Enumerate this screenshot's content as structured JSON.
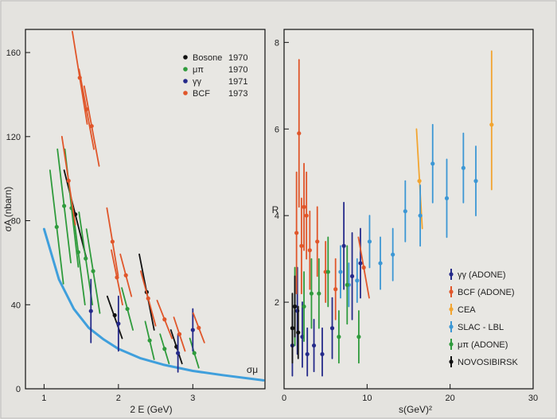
{
  "chart_data": [
    {
      "type": "scatter",
      "xlabel": "2 E (GeV)",
      "ylabel": "σA (nbarn)",
      "xlim": [
        0.75,
        3.97
      ],
      "ylim": [
        0,
        171
      ],
      "xticks": [
        "1",
        "2",
        "3"
      ],
      "xtick_values": [
        1,
        2,
        3
      ],
      "yticks": [
        "0",
        "40",
        "80",
        "120",
        "160"
      ],
      "ytick_values": [
        0,
        40,
        80,
        120,
        160
      ],
      "legend_position": "top-right",
      "curve": {
        "name": "σμ",
        "color": "#3f9fdc",
        "x": [
          1.0,
          1.2,
          1.4,
          1.6,
          1.8,
          2.0,
          2.3,
          2.6,
          3.0,
          3.4,
          3.95
        ],
        "y": [
          76,
          52,
          38,
          29,
          23.5,
          19,
          14.5,
          11.5,
          8.5,
          6.5,
          4
        ]
      },
      "series": [
        {
          "name": "Bosone",
          "year": "1970",
          "color": "#111111",
          "points": [
            {
              "x": 1.42,
              "y": 83,
              "lo": 62,
              "hi": 104,
              "dx": 0.3
            },
            {
              "x": 1.95,
              "y": 35,
              "lo": 24,
              "hi": 44,
              "dx": 0.2
            },
            {
              "x": 2.38,
              "y": 46,
              "lo": 28,
              "hi": 64,
              "dx": 0.2
            },
            {
              "x": 2.78,
              "y": 20,
              "lo": 12,
              "hi": 28,
              "dx": 0.15
            }
          ]
        },
        {
          "name": "μπ",
          "year": "1970",
          "color": "#2f9b3c",
          "points": [
            {
              "x": 1.17,
              "y": 77,
              "lo": 50,
              "hi": 104,
              "dx": 0.18
            },
            {
              "x": 1.27,
              "y": 87,
              "lo": 60,
              "hi": 114,
              "dx": 0.18
            },
            {
              "x": 1.37,
              "y": 86,
              "lo": 58,
              "hi": 114,
              "dx": 0.18
            },
            {
              "x": 1.46,
              "y": 65,
              "lo": 40,
              "hi": 90,
              "dx": 0.18
            },
            {
              "x": 1.56,
              "y": 62,
              "lo": 40,
              "hi": 84,
              "dx": 0.18
            },
            {
              "x": 1.66,
              "y": 56,
              "lo": 36,
              "hi": 76,
              "dx": 0.18
            },
            {
              "x": 2.12,
              "y": 38,
              "lo": 28,
              "hi": 48,
              "dx": 0.15
            },
            {
              "x": 2.42,
              "y": 23,
              "lo": 14,
              "hi": 32,
              "dx": 0.12
            },
            {
              "x": 2.62,
              "y": 19,
              "lo": 12,
              "hi": 26,
              "dx": 0.12
            },
            {
              "x": 3.02,
              "y": 17,
              "lo": 10,
              "hi": 24,
              "dx": 0.12
            }
          ]
        },
        {
          "name": "γγ",
          "year": "1971",
          "color": "#252a8a",
          "points": [
            {
              "x": 1.63,
              "y": 37,
              "lo": 22,
              "hi": 52,
              "dx": 0
            },
            {
              "x": 2.0,
              "y": 31,
              "lo": 18,
              "hi": 44,
              "dx": 0
            },
            {
              "x": 2.8,
              "y": 17,
              "lo": 8,
              "hi": 26,
              "dx": 0
            },
            {
              "x": 3.0,
              "y": 28,
              "lo": 18,
              "hi": 38,
              "dx": 0
            }
          ]
        },
        {
          "name": "BCF",
          "year": "1973",
          "color": "#e0562a",
          "points": [
            {
              "x": 1.33,
              "y": 99,
              "lo": 78,
              "hi": 120,
              "dx": 0.18
            },
            {
              "x": 1.48,
              "y": 148,
              "lo": 126,
              "hi": 170,
              "dx": 0.2
            },
            {
              "x": 1.57,
              "y": 133,
              "lo": 114,
              "hi": 152,
              "dx": 0.2
            },
            {
              "x": 1.64,
              "y": 125,
              "lo": 106,
              "hi": 144,
              "dx": 0.2
            },
            {
              "x": 1.92,
              "y": 70,
              "lo": 54,
              "hi": 86,
              "dx": 0.15
            },
            {
              "x": 1.98,
              "y": 53,
              "lo": 40,
              "hi": 66,
              "dx": 0.15
            },
            {
              "x": 2.1,
              "y": 54,
              "lo": 44,
              "hi": 64,
              "dx": 0.15
            },
            {
              "x": 2.4,
              "y": 43,
              "lo": 30,
              "hi": 56,
              "dx": 0.2
            },
            {
              "x": 2.62,
              "y": 33,
              "lo": 24,
              "hi": 42,
              "dx": 0.2
            },
            {
              "x": 2.82,
              "y": 26,
              "lo": 18,
              "hi": 34,
              "dx": 0.15
            },
            {
              "x": 3.08,
              "y": 29,
              "lo": 22,
              "hi": 36,
              "dx": 0.15
            }
          ]
        }
      ]
    },
    {
      "type": "scatter",
      "xlabel": "s(GeV)²",
      "ylabel": "R",
      "xlim": [
        0,
        30
      ],
      "ylim": [
        0,
        8.3
      ],
      "xticks": [
        "0",
        "10",
        "20",
        "30"
      ],
      "xtick_values": [
        0,
        10,
        20,
        30
      ],
      "yticks": [
        "2",
        "4",
        "6",
        "8"
      ],
      "ytick_values": [
        2,
        4,
        6,
        8
      ],
      "legend_position": "bottom-right",
      "series": [
        {
          "name": "γγ (ADONE)",
          "color": "#252a8a",
          "points": [
            {
              "x": 1.0,
              "y": 1.0,
              "lo": 0.3,
              "hi": 1.8,
              "dx": 0
            },
            {
              "x": 1.6,
              "y": 1.8,
              "lo": 0.8,
              "hi": 2.8,
              "dx": 0
            },
            {
              "x": 2.2,
              "y": 1.2,
              "lo": 0.5,
              "hi": 2.0,
              "dx": 0
            },
            {
              "x": 2.8,
              "y": 0.8,
              "lo": 0.3,
              "hi": 1.4,
              "dx": 0
            },
            {
              "x": 3.6,
              "y": 1.0,
              "lo": 0.4,
              "hi": 1.6,
              "dx": 0
            },
            {
              "x": 4.6,
              "y": 0.8,
              "lo": 0.3,
              "hi": 1.4,
              "dx": 0
            },
            {
              "x": 5.8,
              "y": 1.4,
              "lo": 0.7,
              "hi": 2.1,
              "dx": 0
            },
            {
              "x": 7.2,
              "y": 3.3,
              "lo": 2.3,
              "hi": 4.3,
              "dx": 0
            },
            {
              "x": 8.2,
              "y": 2.6,
              "lo": 1.6,
              "hi": 3.6,
              "dx": 0
            },
            {
              "x": 9.2,
              "y": 2.9,
              "lo": 2.1,
              "hi": 3.7,
              "dx": 0
            }
          ]
        },
        {
          "name": "BCF (ADONE)",
          "color": "#e0562a",
          "points": [
            {
              "x": 1.5,
              "y": 3.6,
              "lo": 2.2,
              "hi": 5.0,
              "dx": 0
            },
            {
              "x": 1.8,
              "y": 5.9,
              "lo": 4.2,
              "hi": 7.6,
              "dx": 0
            },
            {
              "x": 2.1,
              "y": 3.3,
              "lo": 2.2,
              "hi": 4.4,
              "dx": 0
            },
            {
              "x": 2.4,
              "y": 4.2,
              "lo": 3.2,
              "hi": 5.2,
              "dx": 0
            },
            {
              "x": 2.7,
              "y": 4.0,
              "lo": 3.0,
              "hi": 5.0,
              "dx": 0
            },
            {
              "x": 3.1,
              "y": 3.2,
              "lo": 2.3,
              "hi": 4.1,
              "dx": 0
            },
            {
              "x": 4.0,
              "y": 3.4,
              "lo": 2.6,
              "hi": 4.2,
              "dx": 0
            },
            {
              "x": 5.0,
              "y": 2.7,
              "lo": 2.0,
              "hi": 3.4,
              "dx": 0
            },
            {
              "x": 6.2,
              "y": 2.3,
              "lo": 1.6,
              "hi": 3.0,
              "dx": 0
            },
            {
              "x": 9.6,
              "y": 2.8,
              "lo": 2.1,
              "hi": 3.5,
              "dx": 1.3
            }
          ]
        },
        {
          "name": "CEA",
          "color": "#f2a531",
          "points": [
            {
              "x": 16.3,
              "y": 4.8,
              "lo": 3.7,
              "hi": 6.0,
              "dx": 0.7
            },
            {
              "x": 25.0,
              "y": 6.1,
              "lo": 4.6,
              "hi": 7.8,
              "dx": 0
            }
          ]
        },
        {
          "name": "SLAC - LBL",
          "color": "#3c97d4",
          "points": [
            {
              "x": 6.8,
              "y": 2.7,
              "lo": 2.1,
              "hi": 3.3,
              "dx": 0
            },
            {
              "x": 7.8,
              "y": 2.4,
              "lo": 1.9,
              "hi": 2.9,
              "dx": 0
            },
            {
              "x": 8.8,
              "y": 2.5,
              "lo": 2.0,
              "hi": 3.0,
              "dx": 0
            },
            {
              "x": 10.3,
              "y": 3.4,
              "lo": 2.8,
              "hi": 4.0,
              "dx": 0
            },
            {
              "x": 11.6,
              "y": 2.9,
              "lo": 2.3,
              "hi": 3.5,
              "dx": 0
            },
            {
              "x": 13.1,
              "y": 3.1,
              "lo": 2.5,
              "hi": 3.7,
              "dx": 0
            },
            {
              "x": 14.6,
              "y": 4.1,
              "lo": 3.4,
              "hi": 4.8,
              "dx": 0
            },
            {
              "x": 16.4,
              "y": 4.0,
              "lo": 3.3,
              "hi": 4.7,
              "dx": 0
            },
            {
              "x": 17.9,
              "y": 5.2,
              "lo": 4.3,
              "hi": 6.1,
              "dx": 0
            },
            {
              "x": 19.6,
              "y": 4.4,
              "lo": 3.5,
              "hi": 5.3,
              "dx": 0
            },
            {
              "x": 21.6,
              "y": 5.1,
              "lo": 4.3,
              "hi": 5.9,
              "dx": 0
            },
            {
              "x": 23.1,
              "y": 4.8,
              "lo": 4.0,
              "hi": 5.6,
              "dx": 0
            }
          ]
        },
        {
          "name": "μπ (ADONE)",
          "color": "#2f9b3c",
          "points": [
            {
              "x": 1.3,
              "y": 1.9,
              "lo": 1.0,
              "hi": 2.8,
              "dx": 0
            },
            {
              "x": 2.4,
              "y": 1.9,
              "lo": 1.1,
              "hi": 2.7,
              "dx": 0
            },
            {
              "x": 3.3,
              "y": 2.2,
              "lo": 1.4,
              "hi": 3.0,
              "dx": 0
            },
            {
              "x": 4.2,
              "y": 2.2,
              "lo": 1.4,
              "hi": 3.0,
              "dx": 0
            },
            {
              "x": 5.3,
              "y": 2.7,
              "lo": 1.9,
              "hi": 3.5,
              "dx": 0
            },
            {
              "x": 6.6,
              "y": 1.2,
              "lo": 0.6,
              "hi": 1.8,
              "dx": 0
            },
            {
              "x": 7.6,
              "y": 2.4,
              "lo": 1.5,
              "hi": 3.3,
              "dx": 0
            },
            {
              "x": 9.0,
              "y": 1.2,
              "lo": 0.6,
              "hi": 1.8,
              "dx": 0
            }
          ]
        },
        {
          "name": "NOVOSIBIRSK",
          "color": "#111111",
          "points": [
            {
              "x": 1.0,
              "y": 1.4,
              "lo": 0.6,
              "hi": 2.2,
              "dx": 0
            },
            {
              "x": 1.3,
              "y": 1.9,
              "lo": 1.2,
              "hi": 2.6,
              "dx": 0
            },
            {
              "x": 1.7,
              "y": 1.3,
              "lo": 0.7,
              "hi": 1.9,
              "dx": 0
            }
          ]
        }
      ]
    }
  ]
}
